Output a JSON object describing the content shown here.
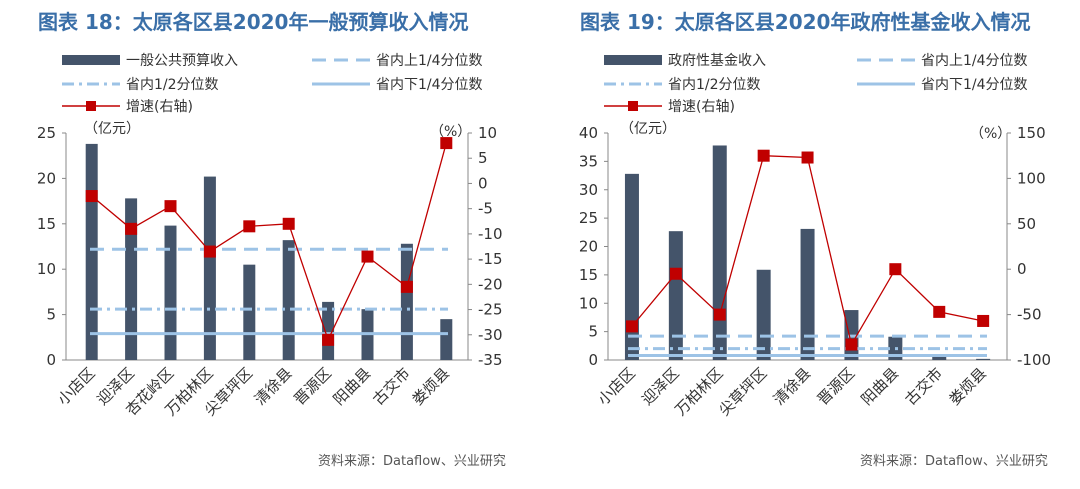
{
  "source_text": "资料来源：Dataflow、兴业研究",
  "colors": {
    "bar": "#44546a",
    "line": "#c00000",
    "marker": "#c00000",
    "ref_dash": "#9dc3e6",
    "ref_dashdot": "#9dc3e6",
    "ref_solid": "#9dc3e6",
    "title": "#3a6fa8"
  },
  "chart_data": [
    {
      "type": "bar",
      "title": "图表 18：太原各区县2020年一般预算收入情况",
      "categories": [
        "小店区",
        "迎泽区",
        "杏花岭区",
        "万柏林区",
        "尖草坪区",
        "清徐县",
        "晋源区",
        "阳曲县",
        "古交市",
        "娄烦县"
      ],
      "series": [
        {
          "name": "一般公共预算收入",
          "kind": "bar",
          "axis": "left",
          "values": [
            23.8,
            17.8,
            14.8,
            20.2,
            10.5,
            13.2,
            6.4,
            5.6,
            12.8,
            4.5
          ]
        },
        {
          "name": "增速(右轴)",
          "kind": "line",
          "axis": "right",
          "values": [
            -2.5,
            -9,
            -4.5,
            -13.5,
            -8.5,
            -8,
            -31,
            -14.5,
            -20.5,
            8
          ]
        }
      ],
      "reference_lines": [
        {
          "name": "省内上1/4分位数",
          "style": "dash",
          "value": 12.2
        },
        {
          "name": "省内1/2分位数",
          "style": "dashdot",
          "value": 5.6
        },
        {
          "name": "省内下1/4分位数",
          "style": "solid",
          "value": 2.9
        }
      ],
      "legend_order": [
        "一般公共预算收入",
        "省内上1/4分位数",
        "省内1/2分位数",
        "省内下1/4分位数",
        "增速(右轴)"
      ],
      "ylabel_left": "（亿元）",
      "ylabel_right": "（%）",
      "ylim_left": [
        0,
        25
      ],
      "ylim_right": [
        -35,
        10
      ],
      "yticks_left": [
        "0",
        "5",
        "10",
        "15",
        "20",
        "25"
      ],
      "yticks_right": [
        "-35",
        "-30",
        "-25",
        "-20",
        "-15",
        "-10",
        "-5",
        "0",
        "5",
        "10"
      ]
    },
    {
      "type": "bar",
      "title": "图表 19：太原各区县2020年政府性基金收入情况",
      "categories": [
        "小店区",
        "迎泽区",
        "万柏林区",
        "尖草坪区",
        "清徐县",
        "晋源区",
        "阳曲县",
        "古交市",
        "娄烦县"
      ],
      "series": [
        {
          "name": "政府性基金收入",
          "kind": "bar",
          "axis": "left",
          "values": [
            32.8,
            22.7,
            37.8,
            15.9,
            23.1,
            8.8,
            4.1,
            0.6,
            0.2
          ]
        },
        {
          "name": "增速(右轴)",
          "kind": "line",
          "axis": "right",
          "values": [
            -63,
            -5,
            -50,
            125,
            123,
            -83,
            0,
            -47,
            -57
          ]
        }
      ],
      "reference_lines": [
        {
          "name": "省内上1/4分位数",
          "style": "dash",
          "value": 4.2
        },
        {
          "name": "省内1/2分位数",
          "style": "dashdot",
          "value": 2.0
        },
        {
          "name": "省内下1/4分位数",
          "style": "solid",
          "value": 0.8
        }
      ],
      "legend_order": [
        "政府性基金收入",
        "省内上1/4分位数",
        "省内1/2分位数",
        "省内下1/4分位数",
        "增速(右轴)"
      ],
      "ylabel_left": "（亿元）",
      "ylabel_right": "（%）",
      "ylim_left": [
        0,
        40
      ],
      "ylim_right": [
        -100,
        150
      ],
      "yticks_left": [
        "0",
        "5",
        "10",
        "15",
        "20",
        "25",
        "30",
        "35",
        "40"
      ],
      "yticks_right": [
        "-100",
        "-50",
        "0",
        "50",
        "100",
        "150"
      ]
    }
  ]
}
